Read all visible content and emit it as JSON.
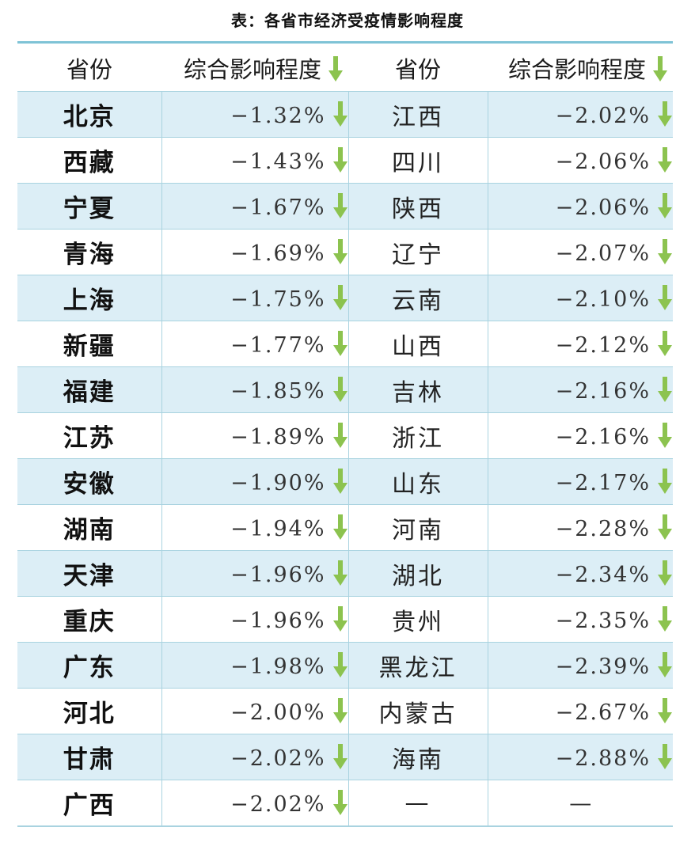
{
  "caption": "表：各省市经济受疫情影响程度",
  "headers": {
    "province": "省份",
    "impact": "综合影响程度"
  },
  "colors": {
    "arrow": "#8cc34f",
    "row_shade": "#dceef6",
    "rule": "#7fc3d6"
  },
  "arrow_icon": "down-arrow-icon",
  "rows": [
    {
      "left_name": "北京",
      "left_value": "−1.32%",
      "right_name": "江西",
      "right_value": "−2.02%"
    },
    {
      "left_name": "西藏",
      "left_value": "−1.43%",
      "right_name": "四川",
      "right_value": "−2.06%"
    },
    {
      "left_name": "宁夏",
      "left_value": "−1.67%",
      "right_name": "陕西",
      "right_value": "−2.06%"
    },
    {
      "left_name": "青海",
      "left_value": "−1.69%",
      "right_name": "辽宁",
      "right_value": "−2.07%"
    },
    {
      "left_name": "上海",
      "left_value": "−1.75%",
      "right_name": "云南",
      "right_value": "−2.10%"
    },
    {
      "left_name": "新疆",
      "left_value": "−1.77%",
      "right_name": "山西",
      "right_value": "−2.12%"
    },
    {
      "left_name": "福建",
      "left_value": "−1.85%",
      "right_name": "吉林",
      "right_value": "−2.16%"
    },
    {
      "left_name": "江苏",
      "left_value": "−1.89%",
      "right_name": "浙江",
      "right_value": "−2.16%"
    },
    {
      "left_name": "安徽",
      "left_value": "−1.90%",
      "right_name": "山东",
      "right_value": "−2.17%"
    },
    {
      "left_name": "湖南",
      "left_value": "−1.94%",
      "right_name": "河南",
      "right_value": "−2.28%"
    },
    {
      "left_name": "天津",
      "left_value": "−1.96%",
      "right_name": "湖北",
      "right_value": "−2.34%"
    },
    {
      "left_name": "重庆",
      "left_value": "−1.96%",
      "right_name": "贵州",
      "right_value": "−2.35%"
    },
    {
      "left_name": "广东",
      "left_value": "−1.98%",
      "right_name": "黑龙江",
      "right_value": "−2.39%"
    },
    {
      "left_name": "河北",
      "left_value": "−2.00%",
      "right_name": "内蒙古",
      "right_value": "−2.67%"
    },
    {
      "left_name": "甘肃",
      "left_value": "−2.02%",
      "right_name": "海南",
      "right_value": "−2.88%"
    },
    {
      "left_name": "广西",
      "left_value": "−2.02%",
      "right_name": "—",
      "right_value": "—"
    }
  ]
}
